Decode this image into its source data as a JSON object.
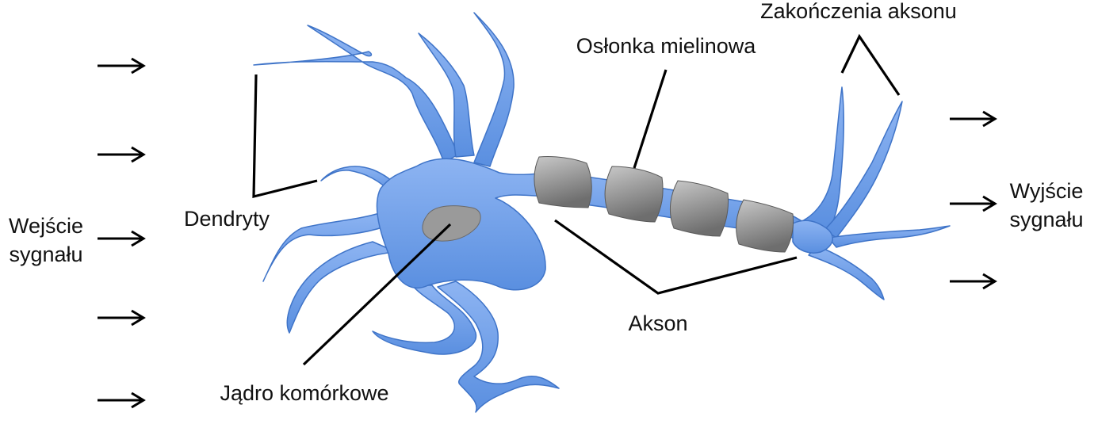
{
  "labels": {
    "input": [
      "Wejście",
      "sygnału"
    ],
    "output": [
      "Wyjście",
      "sygnału"
    ],
    "dendrites": "Dendryty",
    "nucleus": "Jądro komórkowe",
    "axon": "Akson",
    "myelin": "Osłonka mielinowa",
    "terminals": "Zakończenia aksonu"
  },
  "colors": {
    "cell_light": "#8db4f2",
    "cell_dark": "#5a8fe0",
    "cell_outline": "#3f74c8",
    "myelin_light": "#c8c8c8",
    "myelin_dark": "#6e6e6e",
    "nucleus": "#9a9a9a",
    "leader": "#000000"
  },
  "icons": {
    "input_arrows": [
      "arrow-right-icon",
      "arrow-right-icon",
      "arrow-right-icon",
      "arrow-right-icon",
      "arrow-right-icon"
    ],
    "output_arrows": [
      "arrow-right-icon",
      "arrow-right-icon",
      "arrow-right-icon"
    ]
  }
}
